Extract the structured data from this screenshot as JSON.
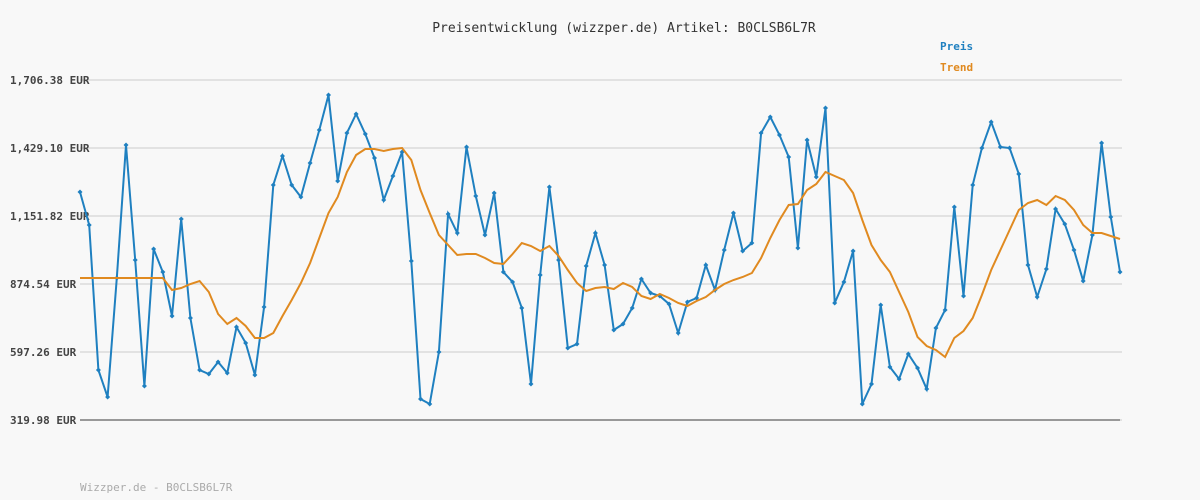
{
  "chart_data": {
    "type": "line",
    "title": "Preisentwicklung (wizzper.de) Artikel: B0CLSB6L7R",
    "footer": "Wizzper.de - B0CLSB6L7R",
    "legend": "top-right",
    "grid": true,
    "ylim": [
      319.98,
      1706.38
    ],
    "yticks": [
      {
        "value": 319.98,
        "label": "319.98 EUR"
      },
      {
        "value": 597.26,
        "label": "597.26 EUR"
      },
      {
        "value": 874.54,
        "label": "874.54 EUR"
      },
      {
        "value": 1151.82,
        "label": "1,151.82 EUR"
      },
      {
        "value": 1429.1,
        "label": "1,429.10 EUR"
      },
      {
        "value": 1706.38,
        "label": "1,706.38 EUR"
      }
    ],
    "series": [
      {
        "name": "Preis",
        "color": "#1f80c0",
        "markers": true,
        "values": [
          1249.7,
          1115.1,
          523.9,
          413.8,
          899.0,
          1441.3,
          972.4,
          458.6,
          1017.3,
          923.5,
          744.1,
          1139.6,
          735.9,
          523.9,
          507.6,
          556.5,
          511.6,
          699.2,
          634.0,
          503.5,
          780.8,
          1278.2,
          1396.5,
          1278.2,
          1229.3,
          1367.9,
          1502.5,
          1645.2,
          1294.5,
          1490.3,
          1567.7,
          1486.2,
          1388.3,
          1217.1,
          1314.9,
          1412.8,
          968.3,
          405.6,
          385.2,
          597.3,
          1160.0,
          1082.5,
          1433.2,
          1233.4,
          1074.4,
          1245.6,
          923.5,
          882.7,
          776.7,
          466.8,
          911.3,
          1270.1,
          972.4,
          613.6,
          629.9,
          947.9,
          1082.5,
          952.0,
          687.0,
          711.4,
          776.7,
          894.9,
          837.9,
          825.6,
          793.0,
          674.8,
          801.2,
          817.5,
          952.0,
          850.1,
          1013.2,
          1164.1,
          1009.1,
          1041.7,
          1490.3,
          1555.5,
          1482.1,
          1392.4,
          1021.3,
          1461.7,
          1310.9,
          1592.2,
          797.1,
          882.7,
          1009.1,
          385.2,
          466.8,
          788.9,
          536.1,
          487.2,
          589.1,
          532.0,
          446.4,
          695.1,
          768.5,
          1188.5,
          825.6,
          1278.2,
          1429.1,
          1535.1,
          1433.2,
          1429.1,
          1323.1,
          952.0,
          821.5,
          935.7,
          1180.4,
          1119.2,
          1013.2,
          886.8,
          1074.4,
          1449.5,
          1147.8,
          923.5
        ]
      },
      {
        "name": "Trend",
        "color": "#e08a20",
        "markers": false,
        "values": [
          899.0,
          899.0,
          899.0,
          899.0,
          899.0,
          899.0,
          899.0,
          899.0,
          899.0,
          899.0,
          850.1,
          858.2,
          874.6,
          886.8,
          841.9,
          752.2,
          711.4,
          735.9,
          703.3,
          654.4,
          654.4,
          674.8,
          744.1,
          809.3,
          878.6,
          960.2,
          1062.1,
          1164.1,
          1229.3,
          1331.2,
          1400.6,
          1425.0,
          1425.0,
          1416.9,
          1425.0,
          1429.1,
          1380.2,
          1257.8,
          1164.1,
          1074.4,
          1033.6,
          992.8,
          996.9,
          996.9,
          980.6,
          960.2,
          956.1,
          996.9,
          1041.7,
          1029.5,
          1009.1,
          1029.5,
          988.7,
          931.6,
          878.6,
          846.0,
          858.2,
          862.3,
          854.2,
          878.6,
          862.3,
          825.6,
          813.4,
          833.8,
          817.5,
          797.1,
          784.8,
          805.2,
          821.5,
          850.1,
          874.6,
          890.9,
          903.1,
          919.4,
          980.6,
          1062.1,
          1135.5,
          1196.7,
          1200.8,
          1257.8,
          1282.3,
          1331.2,
          1314.9,
          1298.6,
          1245.6,
          1135.5,
          1033.6,
          972.4,
          923.5,
          841.9,
          760.4,
          658.4,
          621.7,
          605.4,
          576.9,
          654.4,
          682.9,
          735.9,
          829.7,
          931.6,
          1013.2,
          1094.7,
          1176.3,
          1204.8,
          1217.1,
          1196.7,
          1233.4,
          1217.1,
          1176.3,
          1115.1,
          1082.5,
          1082.5,
          1070.3,
          1058.0
        ]
      }
    ]
  }
}
